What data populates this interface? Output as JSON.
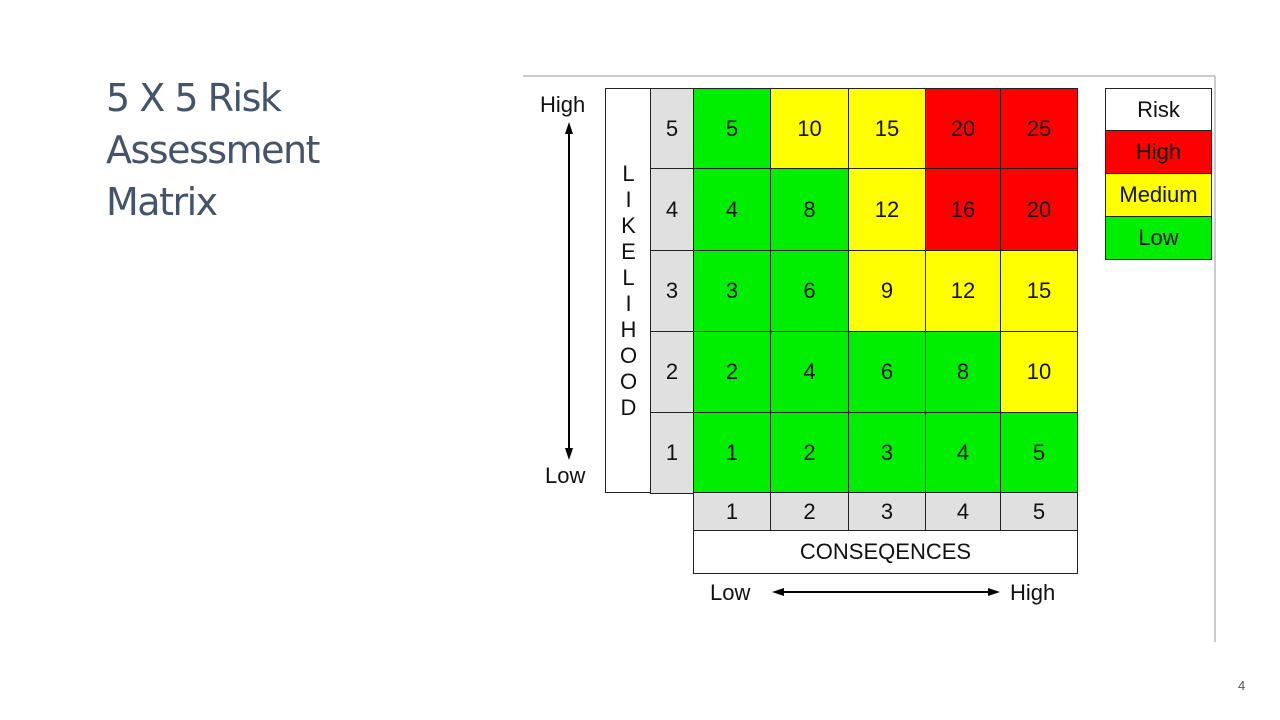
{
  "slide": {
    "title": "5 X 5 Risk Assessment Matrix",
    "page_number": "4"
  },
  "matrix": {
    "y_axis": {
      "high": "High",
      "low": "Low",
      "label": "LIKELIHOOD"
    },
    "rows": [
      {
        "likelihood": 5,
        "values": [
          5,
          10,
          15,
          20,
          25
        ],
        "colors": [
          "#00ee00",
          "#ffff00",
          "#ffff00",
          "#ff0000",
          "#ff0000"
        ]
      },
      {
        "likelihood": 4,
        "values": [
          4,
          8,
          12,
          16,
          20
        ],
        "colors": [
          "#00ee00",
          "#00ee00",
          "#ffff00",
          "#ff0000",
          "#ff0000"
        ]
      },
      {
        "likelihood": 3,
        "values": [
          3,
          6,
          9,
          12,
          15
        ],
        "colors": [
          "#00ee00",
          "#00ee00",
          "#ffff00",
          "#ffff00",
          "#ffff00"
        ]
      },
      {
        "likelihood": 2,
        "values": [
          2,
          4,
          6,
          8,
          10
        ],
        "colors": [
          "#00ee00",
          "#00ee00",
          "#00ee00",
          "#00ee00",
          "#ffff00"
        ]
      },
      {
        "likelihood": 1,
        "values": [
          1,
          2,
          3,
          4,
          5
        ],
        "colors": [
          "#00ee00",
          "#00ee00",
          "#00ee00",
          "#00ee00",
          "#00ee00"
        ]
      }
    ],
    "x_axis": {
      "levels": [
        1,
        2,
        3,
        4,
        5
      ],
      "label": "CONSEQENCES",
      "low": "Low",
      "high": "High"
    },
    "legend": {
      "title": "Risk",
      "items": [
        {
          "label": "High",
          "color": "#ff0000"
        },
        {
          "label": "Medium",
          "color": "#ffff00"
        },
        {
          "label": "Low",
          "color": "#00ee00"
        }
      ]
    }
  }
}
